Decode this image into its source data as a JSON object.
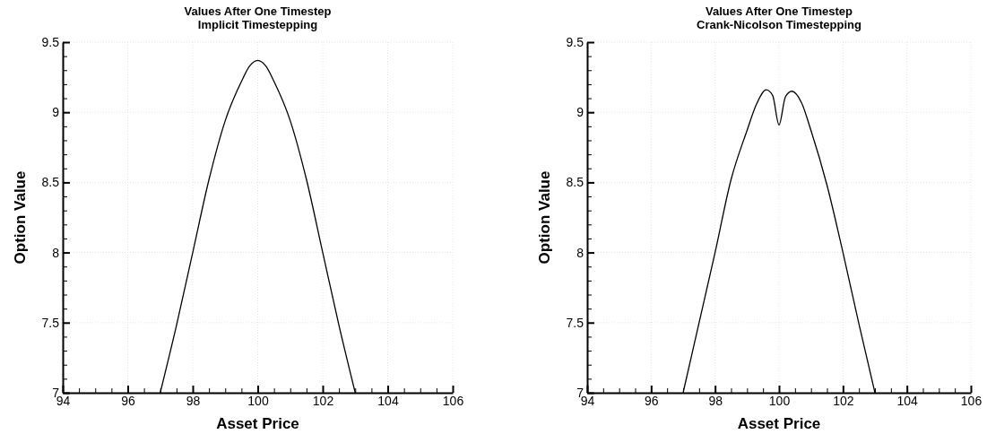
{
  "chart_data": [
    {
      "type": "line",
      "title": "Values After One Timestep\nImplicit Timestepping",
      "xlabel": "Asset Price",
      "ylabel": "Option Value",
      "xlim": [
        94,
        106
      ],
      "ylim": [
        7,
        9.5
      ],
      "grid": true,
      "xticks": [
        94,
        {
          "value": 94.5,
          "label": null
        },
        {
          "value": 95,
          "label": null
        },
        {
          "value": 95.5,
          "label": null
        },
        96,
        {
          "value": 96.5,
          "label": null
        },
        {
          "value": 97,
          "label": null
        },
        {
          "value": 97.5,
          "label": null
        },
        98,
        {
          "value": 98.5,
          "label": null
        },
        {
          "value": 99,
          "label": null
        },
        {
          "value": 99.5,
          "label": null
        },
        100,
        {
          "value": 100.5,
          "label": null
        },
        {
          "value": 101,
          "label": null
        },
        {
          "value": 101.5,
          "label": null
        },
        102,
        {
          "value": 102.5,
          "label": null
        },
        {
          "value": 103,
          "label": null
        },
        {
          "value": 103.5,
          "label": null
        },
        104,
        {
          "value": 104.5,
          "label": null
        },
        {
          "value": 105,
          "label": null
        },
        {
          "value": 105.5,
          "label": null
        },
        106
      ],
      "yticks": [
        7,
        {
          "value": 7.1,
          "label": null
        },
        {
          "value": 7.2,
          "label": null
        },
        {
          "value": 7.3,
          "label": null
        },
        {
          "value": 7.4,
          "label": null
        },
        7.5,
        {
          "value": 7.6,
          "label": null
        },
        {
          "value": 7.7,
          "label": null
        },
        {
          "value": 7.8,
          "label": null
        },
        {
          "value": 7.9,
          "label": null
        },
        8,
        {
          "value": 8.1,
          "label": null
        },
        {
          "value": 8.2,
          "label": null
        },
        {
          "value": 8.3,
          "label": null
        },
        {
          "value": 8.4,
          "label": null
        },
        8.5,
        {
          "value": 8.6,
          "label": null
        },
        {
          "value": 8.7,
          "label": null
        },
        {
          "value": 8.8,
          "label": null
        },
        {
          "value": 8.9,
          "label": null
        },
        9,
        {
          "value": 9.1,
          "label": null
        },
        {
          "value": 9.2,
          "label": null
        },
        {
          "value": 9.3,
          "label": null
        },
        {
          "value": 9.4,
          "label": null
        },
        9.5
      ],
      "series": [
        {
          "color": "#000000",
          "x": [
            97,
            97.5,
            98,
            98.5,
            99,
            99.5,
            99.75,
            100,
            100.25,
            100.5,
            101,
            101.5,
            102,
            102.5,
            103
          ],
          "values": [
            7,
            7.48,
            8,
            8.52,
            8.94,
            9.22,
            9.33,
            9.37,
            9.33,
            9.22,
            8.94,
            8.52,
            8,
            7.48,
            7
          ]
        }
      ]
    },
    {
      "type": "line",
      "title": "Values After One Timestep\nCrank-Nicolson Timestepping",
      "xlabel": "Asset Price",
      "ylabel": "Option Value",
      "xlim": [
        94,
        106
      ],
      "ylim": [
        7,
        9.5
      ],
      "grid": true,
      "xticks": [
        94,
        {
          "value": 94.5,
          "label": null
        },
        {
          "value": 95,
          "label": null
        },
        {
          "value": 95.5,
          "label": null
        },
        96,
        {
          "value": 96.5,
          "label": null
        },
        {
          "value": 97,
          "label": null
        },
        {
          "value": 97.5,
          "label": null
        },
        98,
        {
          "value": 98.5,
          "label": null
        },
        {
          "value": 99,
          "label": null
        },
        {
          "value": 99.5,
          "label": null
        },
        100,
        {
          "value": 100.5,
          "label": null
        },
        {
          "value": 101,
          "label": null
        },
        {
          "value": 101.5,
          "label": null
        },
        102,
        {
          "value": 102.5,
          "label": null
        },
        {
          "value": 103,
          "label": null
        },
        {
          "value": 103.5,
          "label": null
        },
        104,
        {
          "value": 104.5,
          "label": null
        },
        {
          "value": 105,
          "label": null
        },
        {
          "value": 105.5,
          "label": null
        },
        106
      ],
      "yticks": [
        7,
        {
          "value": 7.1,
          "label": null
        },
        {
          "value": 7.2,
          "label": null
        },
        {
          "value": 7.3,
          "label": null
        },
        {
          "value": 7.4,
          "label": null
        },
        7.5,
        {
          "value": 7.6,
          "label": null
        },
        {
          "value": 7.7,
          "label": null
        },
        {
          "value": 7.8,
          "label": null
        },
        {
          "value": 7.9,
          "label": null
        },
        8,
        {
          "value": 8.1,
          "label": null
        },
        {
          "value": 8.2,
          "label": null
        },
        {
          "value": 8.3,
          "label": null
        },
        {
          "value": 8.4,
          "label": null
        },
        8.5,
        {
          "value": 8.6,
          "label": null
        },
        {
          "value": 8.7,
          "label": null
        },
        {
          "value": 8.8,
          "label": null
        },
        {
          "value": 8.9,
          "label": null
        },
        9,
        {
          "value": 9.1,
          "label": null
        },
        {
          "value": 9.2,
          "label": null
        },
        {
          "value": 9.3,
          "label": null
        },
        {
          "value": 9.4,
          "label": null
        },
        9.5
      ],
      "series": [
        {
          "color": "#000000",
          "x": [
            97,
            97.5,
            98,
            98.5,
            99,
            99.3,
            99.6,
            99.8,
            100,
            100.2,
            100.4,
            100.7,
            101,
            101.5,
            102,
            102.5,
            103
          ],
          "values": [
            7,
            7.5,
            8,
            8.52,
            8.87,
            9.06,
            9.16,
            9.12,
            8.91,
            9.11,
            9.15,
            9.07,
            8.87,
            8.48,
            8,
            7.49,
            7
          ]
        }
      ]
    }
  ]
}
